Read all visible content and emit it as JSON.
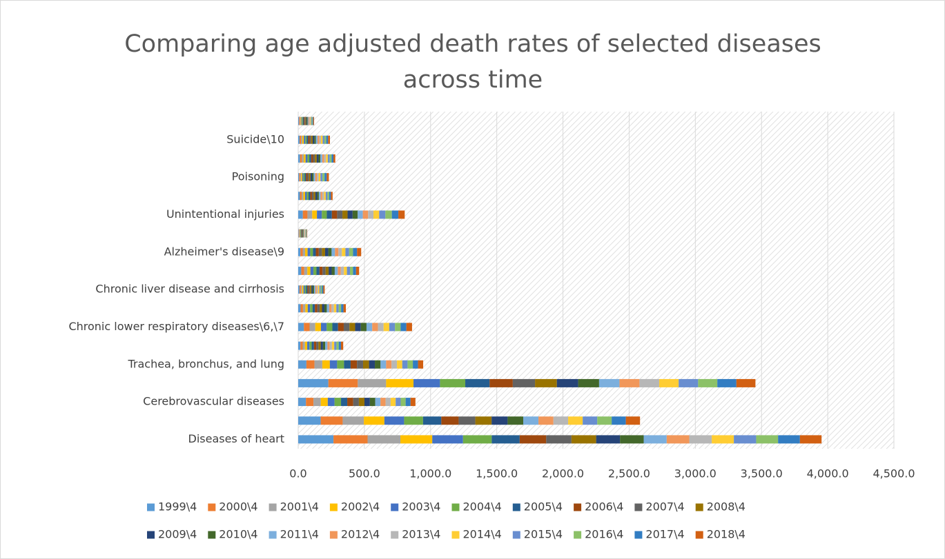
{
  "chart_data": {
    "type": "bar",
    "orientation": "horizontal",
    "stacked": true,
    "title": "Comparing age adjusted death rates of selected diseases across time",
    "categories": [
      "Diseases of heart",
      null,
      "Cerebrovascular diseases",
      null,
      "Trachea, bronchus, and lung",
      null,
      "Chronic lower respiratory diseases\\6,\\7",
      null,
      "Chronic liver disease and cirrhosis",
      null,
      "Alzheimer's disease\\9",
      null,
      "Unintentional injuries",
      null,
      "Poisoning",
      null,
      "Suicide\\10",
      null
    ],
    "series": [
      {
        "name": "1999\\4",
        "color": "#5b9bd5",
        "values": [
          266.5,
          170,
          58.5,
          228,
          62,
          17,
          43,
          18,
          10,
          23,
          16.8,
          3.4,
          35,
          13,
          7,
          14,
          10.5,
          6
        ]
      },
      {
        "name": "2000\\4",
        "color": "#ed7d31",
        "values": [
          257.6,
          166,
          57,
          222,
          61,
          17,
          43,
          18,
          10,
          23,
          17.2,
          3.4,
          35,
          13,
          7.5,
          14,
          10.4,
          6
        ]
      },
      {
        "name": "2001\\4",
        "color": "#a5a5a5",
        "values": [
          247.8,
          160,
          55,
          214,
          59,
          17,
          43,
          18,
          10,
          23,
          18,
          3.4,
          35.5,
          13,
          8,
          14,
          10.7,
          6
        ]
      },
      {
        "name": "2002\\4",
        "color": "#ffc000",
        "values": [
          240.8,
          155,
          53,
          207,
          57,
          17,
          43,
          18,
          10,
          23,
          19,
          3.4,
          36,
          13,
          8.5,
          14,
          10.9,
          6
        ]
      },
      {
        "name": "2003\\4",
        "color": "#4472c4",
        "values": [
          232.3,
          149,
          51,
          200,
          55,
          17,
          43,
          18,
          10,
          23,
          19.8,
          3.4,
          37,
          13,
          9,
          14,
          10.8,
          6
        ]
      },
      {
        "name": "2004\\4",
        "color": "#70ad47",
        "values": [
          217,
          143,
          49,
          191,
          52,
          17,
          43,
          18,
          10,
          23,
          20.5,
          3.4,
          37.5,
          13,
          9.5,
          14,
          10.9,
          6
        ]
      },
      {
        "name": "2005\\4",
        "color": "#255e91",
        "values": [
          211.1,
          138,
          47,
          184,
          50,
          17,
          43,
          18,
          10,
          23,
          21.5,
          3.4,
          38.5,
          13,
          10,
          14,
          11,
          6
        ]
      },
      {
        "name": "2006\\4",
        "color": "#9e480e",
        "values": [
          200.2,
          131,
          45,
          175,
          48,
          17,
          43,
          18,
          10,
          23,
          22.8,
          3.4,
          39.5,
          13,
          11,
          14,
          11.1,
          6
        ]
      },
      {
        "name": "2007\\4",
        "color": "#636363",
        "values": [
          190.9,
          126,
          43,
          168,
          46,
          17,
          43,
          18,
          10,
          23,
          23.5,
          3.4,
          40,
          13,
          11,
          14,
          11.3,
          6
        ]
      },
      {
        "name": "2008\\4",
        "color": "#997300",
        "values": [
          186.5,
          123,
          42,
          165,
          45,
          17,
          43,
          18,
          10,
          23,
          24,
          3.4,
          39,
          13,
          11.5,
          14,
          11.6,
          6
        ]
      },
      {
        "name": "2009\\4",
        "color": "#264478",
        "values": [
          180.1,
          121,
          41,
          161,
          44,
          17,
          43,
          18,
          10,
          23,
          24.2,
          3.4,
          38,
          13,
          11.5,
          14,
          12.1,
          6
        ]
      },
      {
        "name": "2010\\4",
        "color": "#43682b",
        "values": [
          179.1,
          118,
          40.5,
          158,
          43,
          17,
          43,
          18,
          10,
          23,
          25,
          3.4,
          38,
          13,
          12,
          14,
          12.3,
          6
        ]
      },
      {
        "name": "2011\\4",
        "color": "#7cafdd",
        "values": [
          173.7,
          115,
          39.5,
          154,
          42,
          17,
          43,
          18,
          10,
          23,
          25.6,
          3.4,
          39,
          13,
          12.5,
          14,
          12.6,
          6
        ]
      },
      {
        "name": "2012\\4",
        "color": "#f1975a",
        "values": [
          170.5,
          113,
          38.7,
          151,
          41,
          17,
          43,
          18,
          10,
          23,
          25.8,
          3.4,
          40,
          13,
          12.5,
          14,
          12.6,
          6
        ]
      },
      {
        "name": "2013\\4",
        "color": "#b7b7b7",
        "values": [
          169.8,
          111,
          38,
          149,
          41,
          17,
          43,
          18,
          10,
          23,
          26,
          3.4,
          40.5,
          13,
          13,
          14,
          13,
          6
        ]
      },
      {
        "name": "2014\\4",
        "color": "#ffcd33",
        "values": [
          167,
          110,
          38,
          147,
          40,
          17,
          43,
          18,
          10,
          23,
          27,
          3.4,
          43,
          13,
          13.5,
          14,
          13,
          6
        ]
      },
      {
        "name": "2015\\4",
        "color": "#698ed0",
        "values": [
          168.5,
          110,
          38,
          147,
          40,
          17,
          43,
          18,
          10,
          23,
          28,
          3.4,
          47,
          13,
          15,
          14,
          13.3,
          6
        ]
      },
      {
        "name": "2016\\4",
        "color": "#8cc168",
        "values": [
          165.5,
          109,
          37.4,
          145,
          40,
          17,
          43,
          18,
          10,
          23,
          29.3,
          3.4,
          49,
          13,
          16,
          14,
          13.5,
          6
        ]
      },
      {
        "name": "2017\\4",
        "color": "#327dc2",
        "values": [
          165,
          107,
          37,
          144,
          39,
          17,
          43,
          18,
          10,
          23,
          30.5,
          3.4,
          49,
          13,
          16.5,
          14,
          14,
          6
        ]
      },
      {
        "name": "2018\\4",
        "color": "#d26012",
        "values": [
          163.6,
          107,
          37,
          144,
          39,
          17,
          43,
          18,
          10,
          23,
          31.2,
          3.4,
          48,
          13,
          16,
          14,
          14.2,
          6
        ]
      }
    ],
    "xlim": [
      0,
      4500
    ],
    "xticks": [
      {
        "value": 0,
        "label": "0.0"
      },
      {
        "value": 500,
        "label": "500.0"
      },
      {
        "value": 1000,
        "label": "1,000.0"
      },
      {
        "value": 1500,
        "label": "1,500.0"
      },
      {
        "value": 2000,
        "label": "2,000.0"
      },
      {
        "value": 2500,
        "label": "2,500.0"
      },
      {
        "value": 3000,
        "label": "3,000.0"
      },
      {
        "value": 3500,
        "label": "3,500.0"
      },
      {
        "value": 4000,
        "label": "4,000.0"
      },
      {
        "value": 4500,
        "label": "4,500.0"
      }
    ],
    "grid": true,
    "legend": "bottom"
  }
}
